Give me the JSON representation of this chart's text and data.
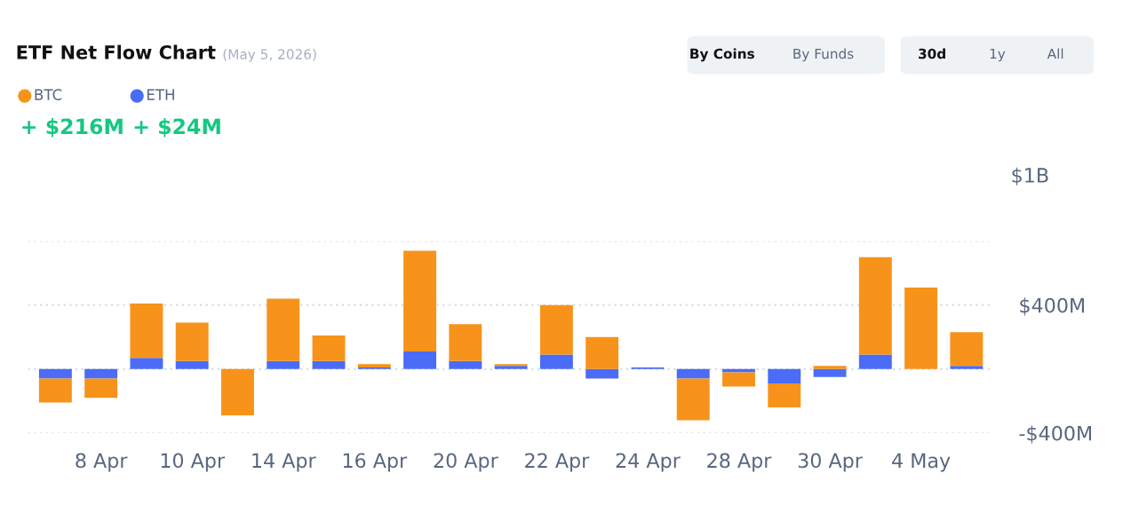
{
  "chart_data": {
    "type": "bar",
    "title": "ETF Net Flow Chart",
    "subtitle": "(May 5, 2026)",
    "categories": [
      null,
      "8 Apr",
      null,
      "10 Apr",
      null,
      "14 Apr",
      null,
      "16 Apr",
      null,
      "20 Apr",
      null,
      "22 Apr",
      null,
      "24 Apr",
      null,
      "28 Apr",
      null,
      "30 Apr",
      null,
      "4 May",
      null
    ],
    "series": [
      {
        "name": "ETH",
        "color": "#4a6cf7",
        "values": [
          -60,
          -60,
          70,
          50,
          0,
          50,
          50,
          10,
          110,
          50,
          20,
          90,
          -60,
          10,
          -60,
          -20,
          -90,
          -50,
          90,
          0,
          20
        ]
      },
      {
        "name": "BTC",
        "color": "#f7931a",
        "values": [
          -150,
          -120,
          340,
          240,
          -290,
          390,
          160,
          20,
          630,
          230,
          10,
          310,
          200,
          0,
          -260,
          -90,
          -150,
          20,
          610,
          510,
          210
        ]
      }
    ],
    "stacked": true,
    "ylim": [
      -400,
      800
    ],
    "yticks": [
      {
        "value": -400,
        "label": "-$400M"
      },
      {
        "value": 0,
        "label": null
      },
      {
        "value": 400,
        "label": "$400M"
      },
      {
        "value": 800,
        "label": null
      }
    ],
    "grid": "y",
    "legend": "top left",
    "annotations": [
      "+ $24M",
      "+ $216M",
      "By Coins",
      "By Funds",
      "30d",
      "1y",
      "All",
      "$1B"
    ]
  }
}
